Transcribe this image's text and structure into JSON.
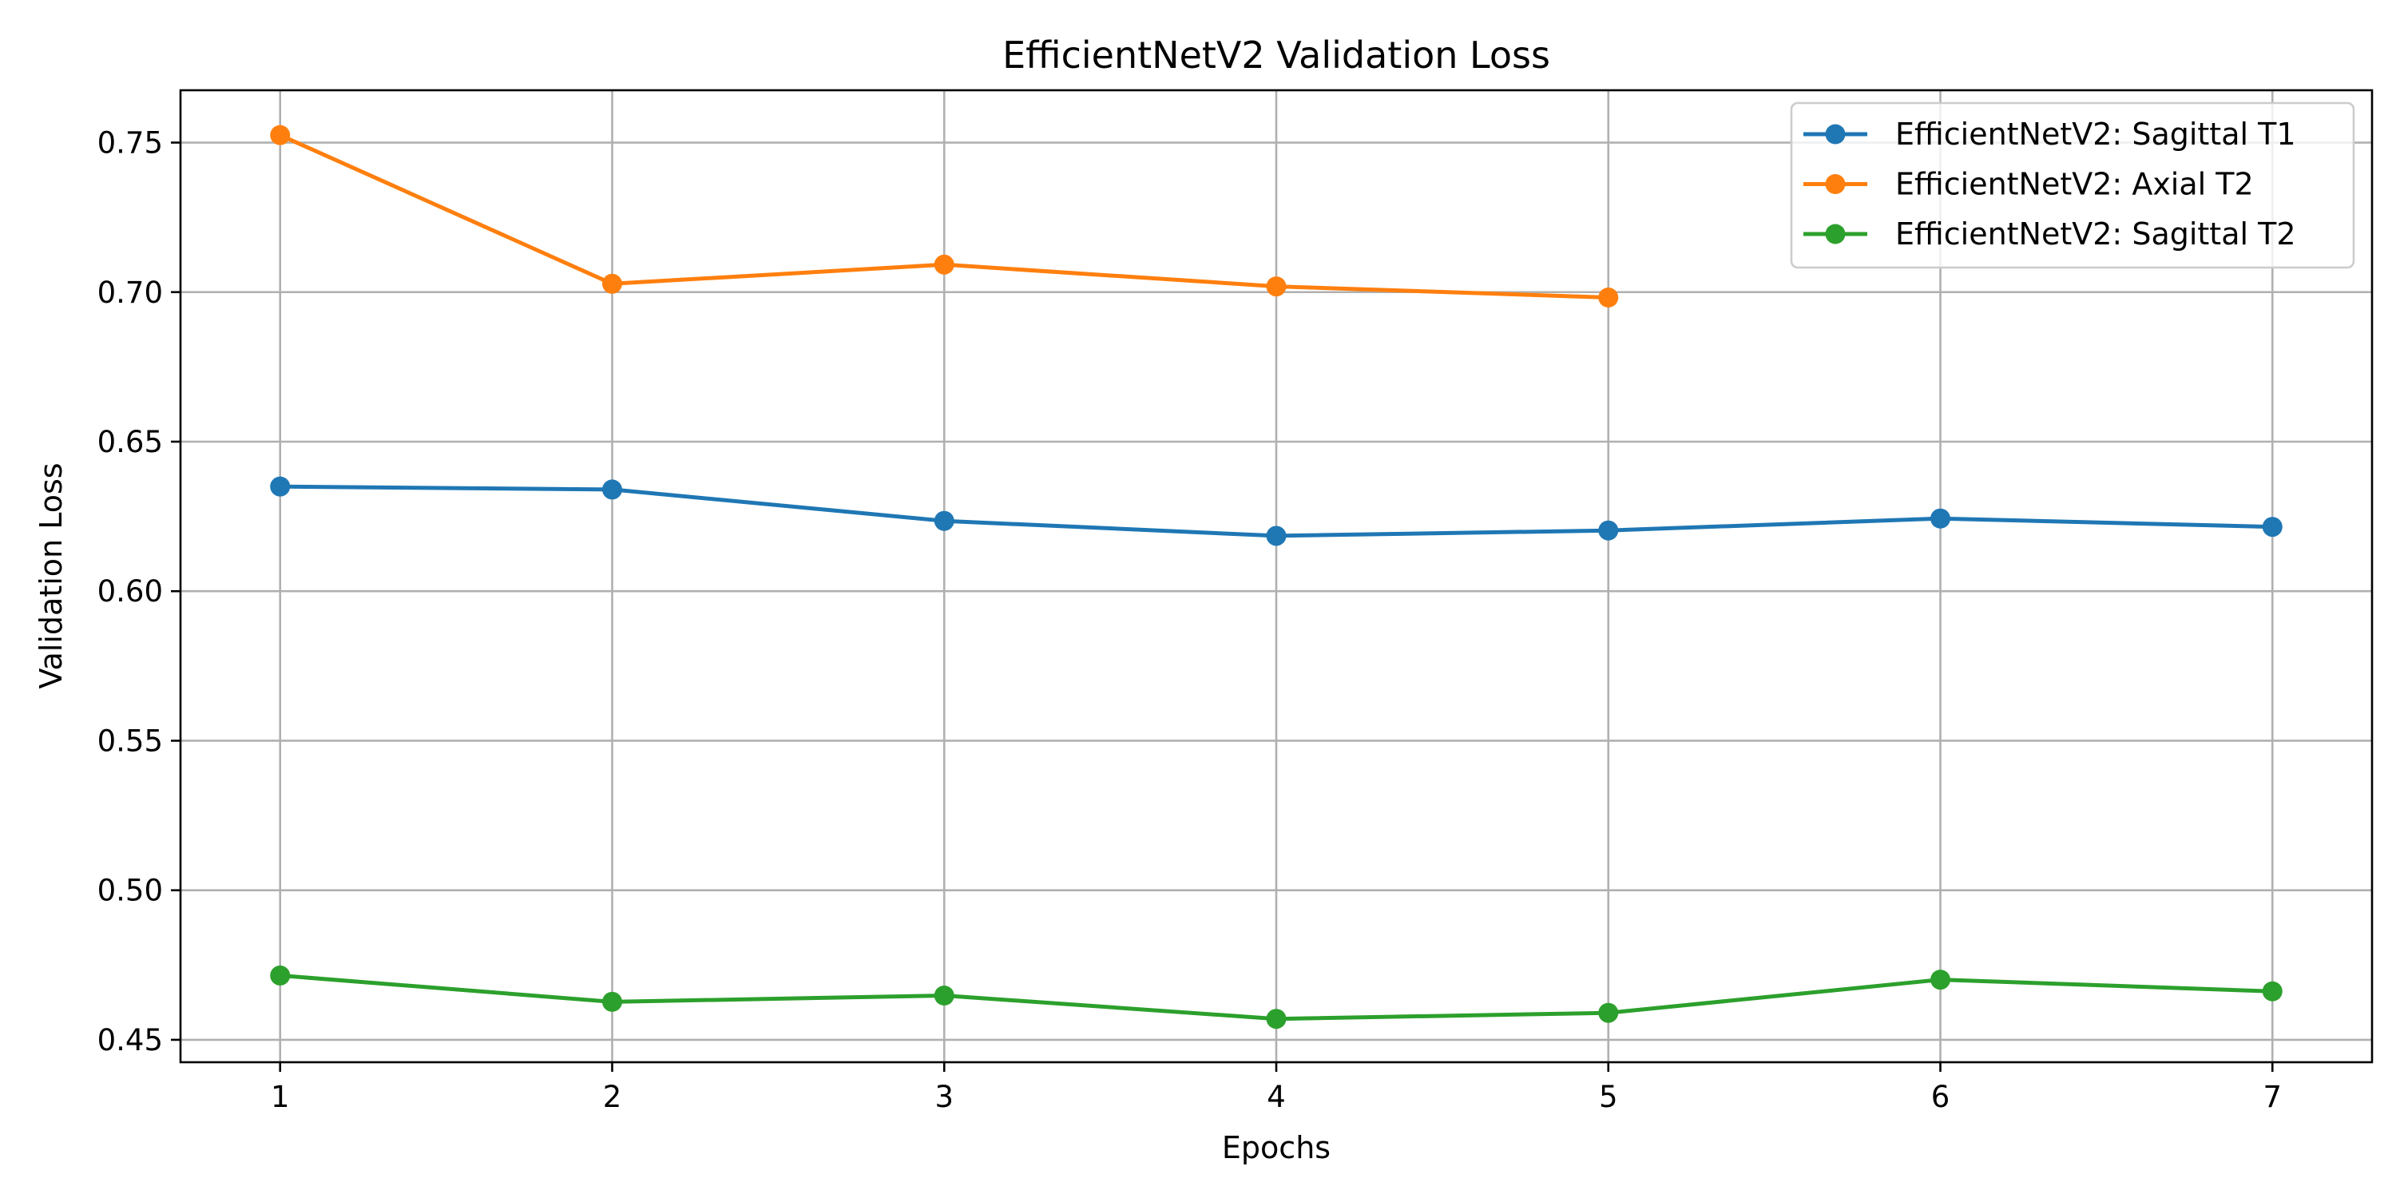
{
  "chart_data": {
    "type": "line",
    "title": "EfficientNetV2 Validation Loss",
    "xlabel": "Epochs",
    "ylabel": "Validation Loss",
    "x": [
      1,
      2,
      3,
      4,
      5,
      6,
      7
    ],
    "xticks": [
      "1",
      "2",
      "3",
      "4",
      "5",
      "6",
      "7"
    ],
    "xlim": [
      0.7,
      7.3
    ],
    "yticks": [
      0.45,
      0.5,
      0.55,
      0.6,
      0.65,
      0.7,
      0.75
    ],
    "ytick_labels": [
      "0.45",
      "0.50",
      "0.55",
      "0.60",
      "0.65",
      "0.70",
      "0.75"
    ],
    "ylim": [
      0.4425,
      0.7675
    ],
    "grid": true,
    "legend_position": "top-right",
    "series": [
      {
        "name": "EfficientNetV2: Sagittal T1",
        "color": "#1f77b4",
        "marker": "circle",
        "x": [
          1,
          2,
          3,
          4,
          5,
          6,
          7
        ],
        "values": [
          0.635,
          0.634,
          0.6235,
          0.6185,
          0.6203,
          0.6243,
          0.6215
        ]
      },
      {
        "name": "EfficientNetV2: Axial T2",
        "color": "#ff7f0e",
        "marker": "circle",
        "x": [
          1,
          2,
          3,
          4,
          5
        ],
        "values": [
          0.7525,
          0.7028,
          0.7092,
          0.7019,
          0.6982
        ]
      },
      {
        "name": "EfficientNetV2: Sagittal T2",
        "color": "#2ca02c",
        "marker": "circle",
        "x": [
          1,
          2,
          3,
          4,
          5,
          6,
          7
        ],
        "values": [
          0.4715,
          0.4627,
          0.4648,
          0.457,
          0.459,
          0.4701,
          0.4662
        ]
      }
    ]
  }
}
